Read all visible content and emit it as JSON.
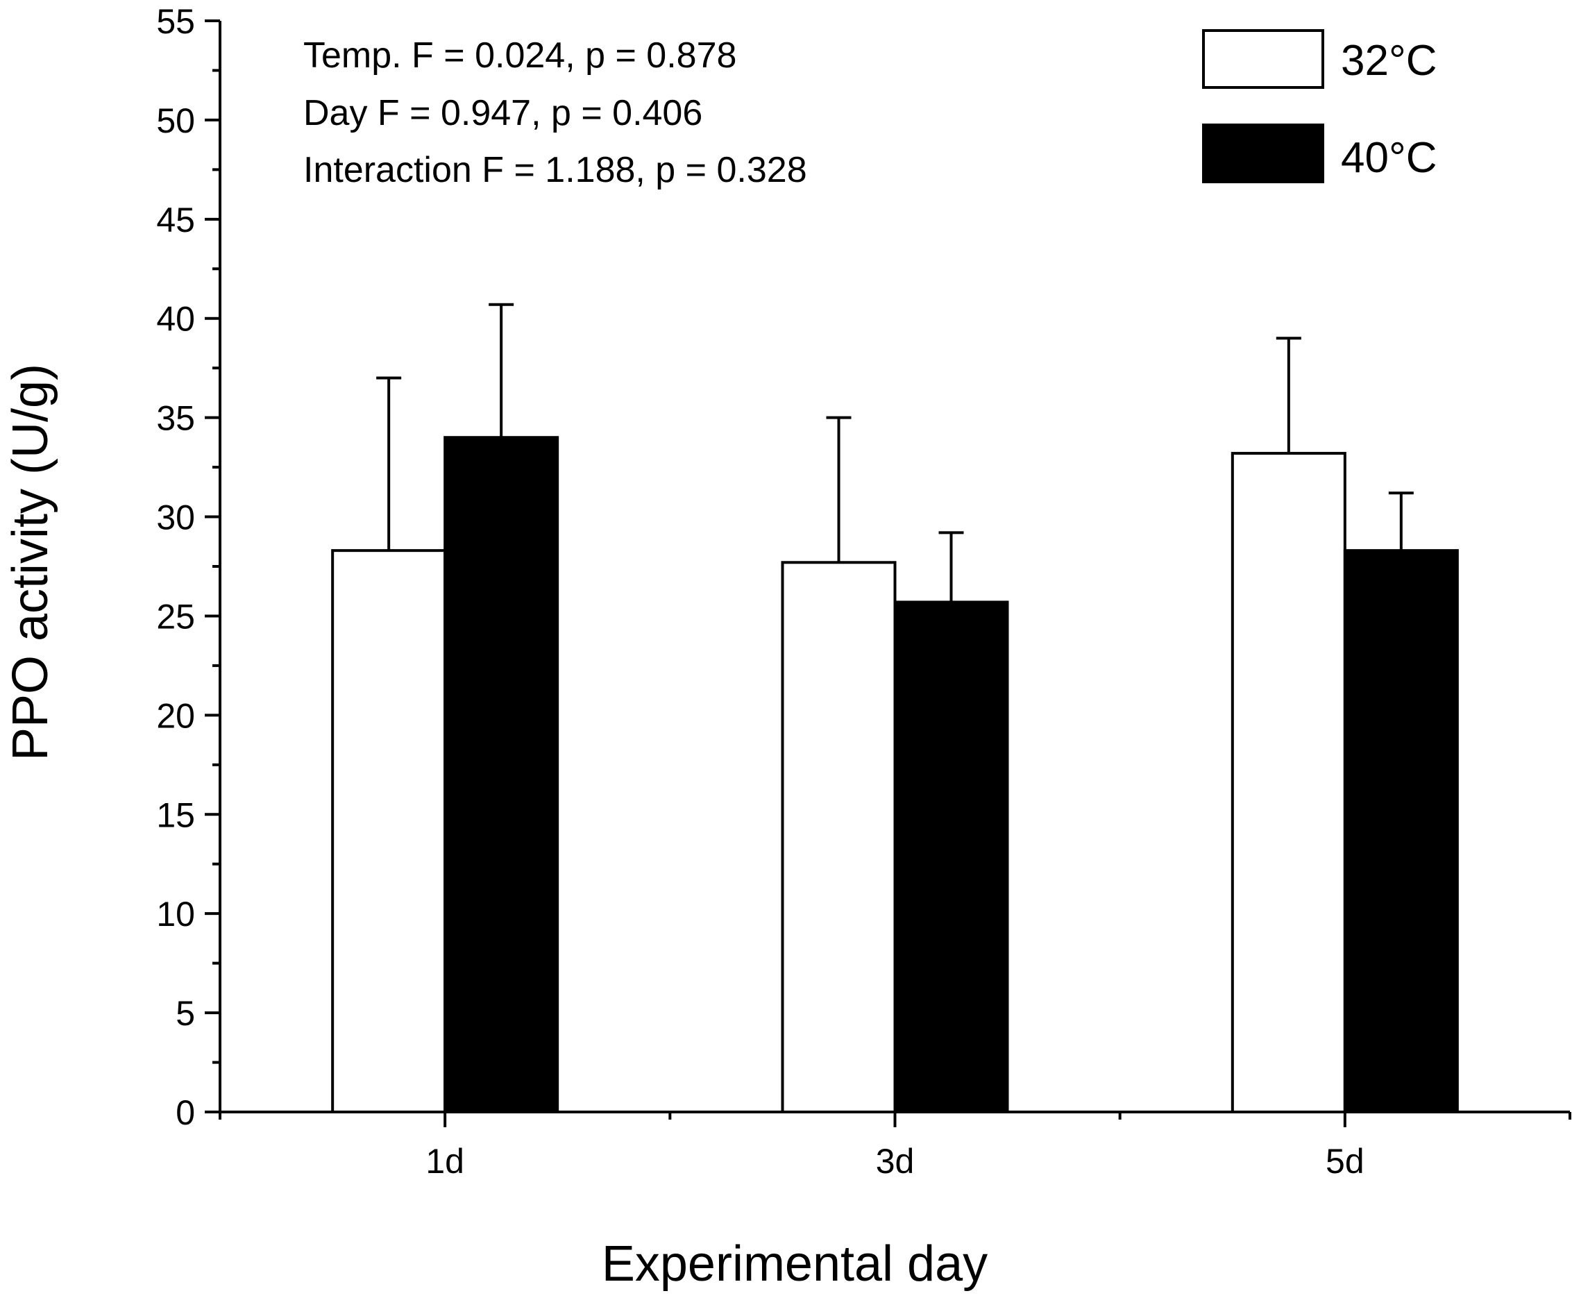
{
  "chart_data": {
    "type": "bar",
    "title": "",
    "xlabel": "Experimental day",
    "ylabel": "PPO activity  (U/g)",
    "categories": [
      "1d",
      "3d",
      "5d"
    ],
    "series": [
      {
        "name": "32°C",
        "color": "#ffffff",
        "values": [
          28.3,
          27.7,
          33.2
        ],
        "errors": [
          8.7,
          7.3,
          5.8
        ]
      },
      {
        "name": "40°C",
        "color": "#000000",
        "values": [
          34.0,
          25.7,
          28.3
        ],
        "errors": [
          6.7,
          3.5,
          2.9
        ]
      }
    ],
    "ylim": [
      0,
      55
    ],
    "yticks": [
      0,
      5,
      10,
      15,
      20,
      25,
      30,
      35,
      40,
      45,
      50,
      55
    ],
    "yticklabels": [
      "0",
      "5",
      "10",
      "15",
      "20",
      "25",
      "30",
      "35",
      "40",
      "45",
      "50",
      "55"
    ],
    "grid": false,
    "legend_position": "top-right",
    "annotations": [
      "Temp. F = 0.024, p = 0.878",
      "Day F = 0.947, p = 0.406",
      "Interaction F = 1.188, p = 0.328"
    ]
  }
}
